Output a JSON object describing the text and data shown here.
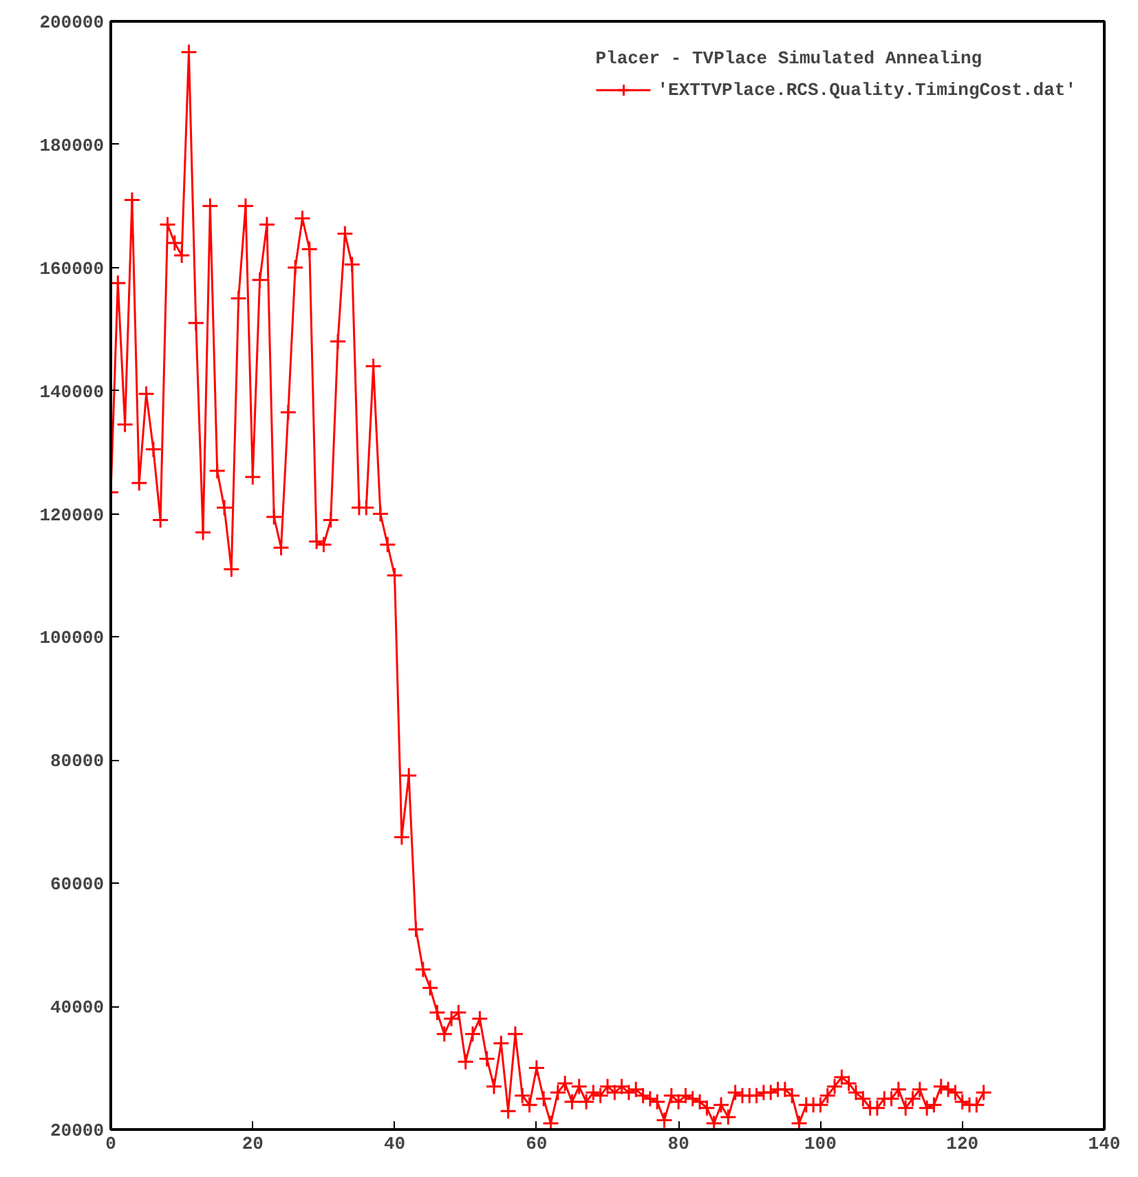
{
  "chart_data": {
    "type": "line",
    "legend_title": "Placer - TVPlace Simulated Annealing",
    "x": [
      0,
      1,
      2,
      3,
      4,
      5,
      6,
      7,
      8,
      9,
      10,
      11,
      12,
      13,
      14,
      15,
      16,
      17,
      18,
      19,
      20,
      21,
      22,
      23,
      24,
      25,
      26,
      27,
      28,
      29,
      30,
      31,
      32,
      33,
      34,
      35,
      36,
      37,
      38,
      39,
      40,
      41,
      42,
      43,
      44,
      45,
      46,
      47,
      48,
      49,
      50,
      51,
      52,
      53,
      54,
      55,
      56,
      57,
      58,
      59,
      60,
      61,
      62,
      63,
      64,
      65,
      66,
      67,
      68,
      69,
      70,
      71,
      72,
      73,
      74,
      75,
      76,
      77,
      78,
      79,
      80,
      81,
      82,
      83,
      84,
      85,
      86,
      87,
      88,
      89,
      90,
      91,
      92,
      93,
      94,
      95,
      96,
      97,
      98,
      99,
      100,
      101,
      102,
      103,
      104,
      105,
      106,
      107,
      108,
      109,
      110,
      111,
      112,
      113,
      114,
      115,
      116,
      117,
      118,
      119,
      120,
      121,
      122,
      123
    ],
    "series": [
      {
        "name": "'EXTTVPlace.RCS.Quality.TimingCost.dat'",
        "color": "#ff0000",
        "values": [
          123500,
          157500,
          134500,
          171000,
          125000,
          139500,
          130500,
          119000,
          167000,
          164000,
          162000,
          195000,
          151000,
          117000,
          170000,
          127000,
          121000,
          111000,
          155000,
          170000,
          126000,
          158000,
          167000,
          119500,
          114500,
          136500,
          160000,
          168000,
          163000,
          115500,
          115000,
          119000,
          148000,
          165500,
          160500,
          121000,
          121000,
          144000,
          120000,
          115000,
          110000,
          67500,
          77500,
          52500,
          46000,
          43000,
          39000,
          35500,
          38000,
          39000,
          31000,
          35500,
          38000,
          31500,
          27000,
          34000,
          23000,
          35500,
          25500,
          24000,
          30000,
          25000,
          21000,
          26000,
          27500,
          24500,
          27000,
          24500,
          26000,
          25500,
          27000,
          26000,
          27000,
          26000,
          26500,
          25500,
          25000,
          24500,
          21500,
          25500,
          24500,
          25500,
          25000,
          24500,
          23500,
          21000,
          24000,
          22000,
          26000,
          25500,
          25500,
          25500,
          26000,
          26000,
          26500,
          26500,
          25500,
          21000,
          24000,
          24000,
          24000,
          25500,
          27000,
          28500,
          27500,
          26000,
          25000,
          23500,
          23500,
          25000,
          25000,
          26500,
          23500,
          25000,
          26500,
          23500,
          24000,
          27000,
          26500,
          26000,
          24500,
          24000,
          24000,
          26000
        ]
      }
    ],
    "xlim": [
      0,
      140
    ],
    "ylim": [
      20000,
      200000
    ],
    "xticks": [
      0,
      20,
      40,
      60,
      80,
      100,
      120,
      140
    ],
    "yticks": [
      20000,
      40000,
      60000,
      80000,
      100000,
      120000,
      140000,
      160000,
      180000,
      200000
    ],
    "grid": false,
    "legend": "top right",
    "marker": "cross",
    "line_style": "solid"
  }
}
